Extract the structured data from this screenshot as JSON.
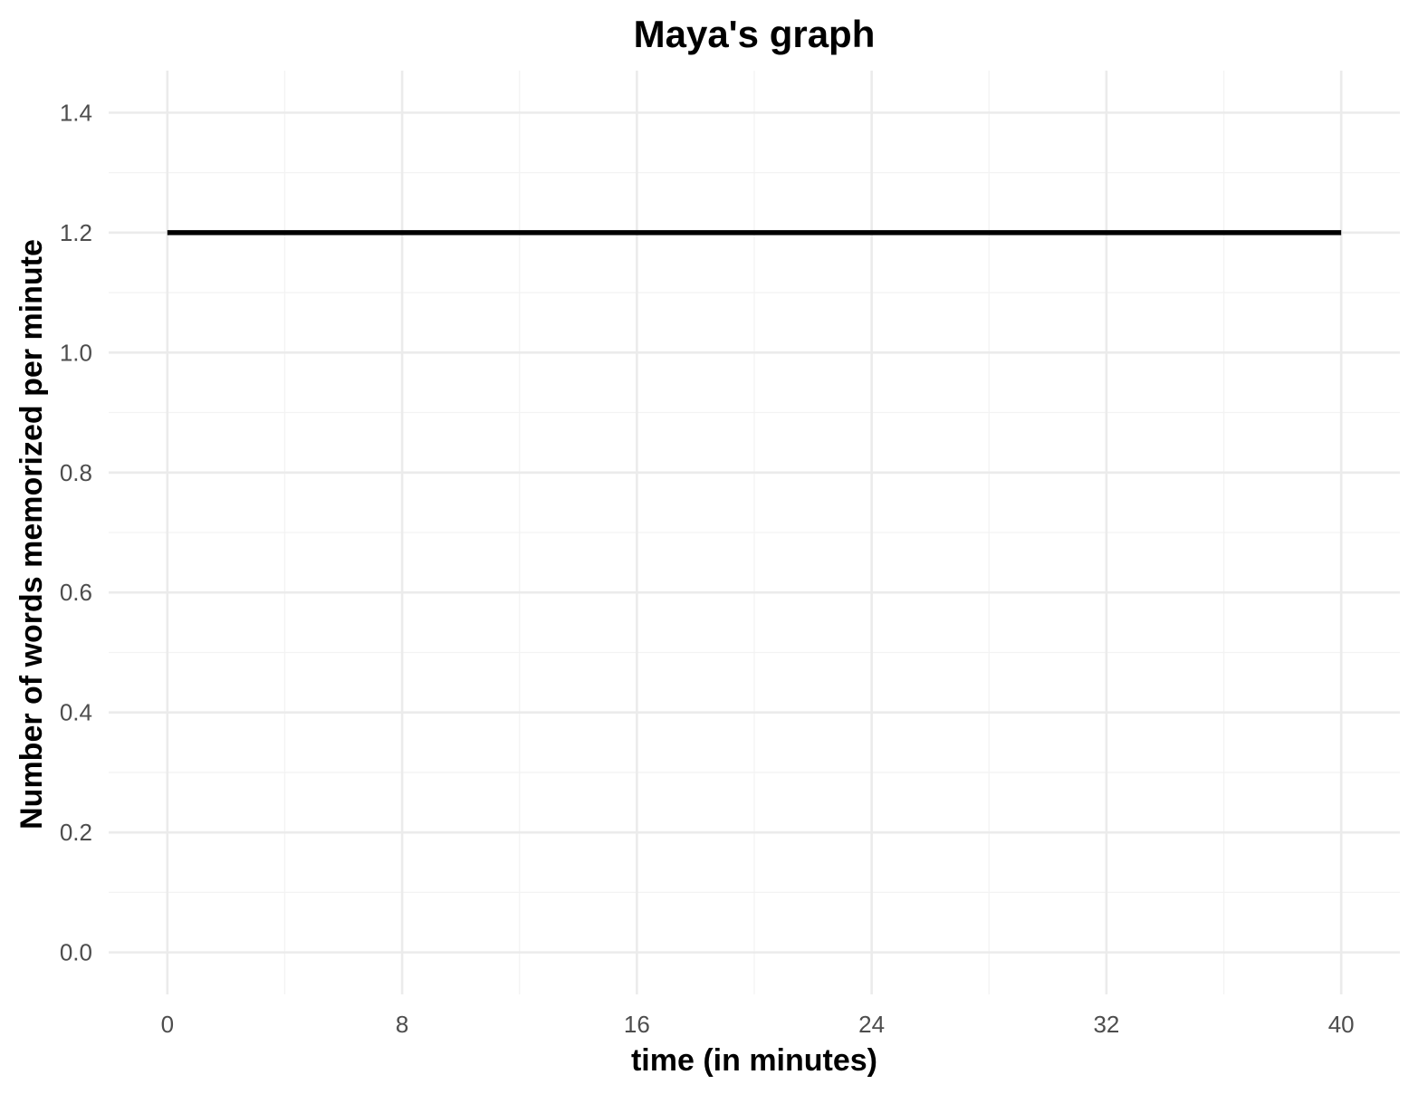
{
  "chart_data": {
    "type": "line",
    "title": "Maya's graph",
    "xlabel": "time (in minutes)",
    "ylabel": "Number of words memorized per minute",
    "xlim": [
      -2,
      42
    ],
    "ylim": [
      -0.07,
      1.47
    ],
    "x_ticks": [
      0,
      8,
      16,
      24,
      32,
      40
    ],
    "x_tick_labels": [
      "0",
      "8",
      "16",
      "24",
      "32",
      "40"
    ],
    "y_ticks": [
      0.0,
      0.2,
      0.4,
      0.6,
      0.8,
      1.0,
      1.2,
      1.4
    ],
    "y_tick_labels": [
      "0.0",
      "0.2",
      "0.4",
      "0.6",
      "0.8",
      "1.0",
      "1.2",
      "1.4"
    ],
    "x_minor_ticks": [
      4,
      12,
      20,
      28,
      36
    ],
    "y_minor_ticks": [
      0.1,
      0.3,
      0.5,
      0.7,
      0.9,
      1.1,
      1.3
    ],
    "grid": true,
    "legend": "none",
    "line_color": "#000000",
    "series": [
      {
        "x": [
          0,
          40
        ],
        "values": [
          1.2,
          1.2
        ]
      }
    ]
  }
}
